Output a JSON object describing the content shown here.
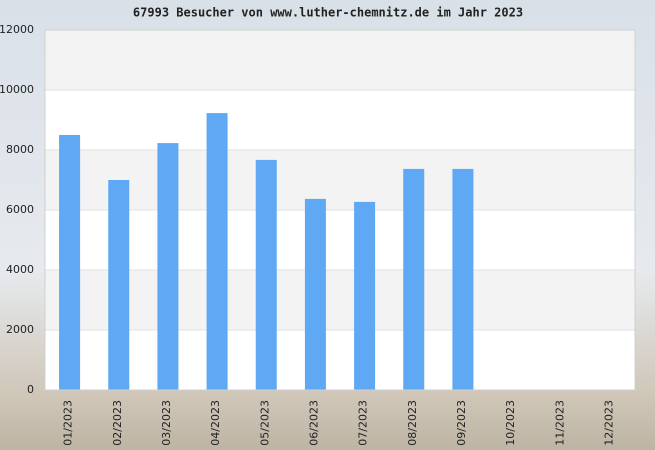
{
  "chart_data": {
    "type": "bar",
    "title": "67993 Besucher von www.luther-chemnitz.de im Jahr 2023",
    "categories": [
      "01/2023",
      "02/2023",
      "03/2023",
      "04/2023",
      "05/2023",
      "06/2023",
      "07/2023",
      "08/2023",
      "09/2023",
      "10/2023",
      "11/2023",
      "12/2023"
    ],
    "values": [
      8500,
      7000,
      8230,
      9230,
      7670,
      6370,
      6270,
      7370,
      7370,
      null,
      null,
      null
    ],
    "color": "#5fa8f4",
    "ylim": [
      0,
      12000
    ],
    "yticks": [
      0,
      2000,
      4000,
      6000,
      8000,
      10000,
      12000
    ],
    "grid": true
  }
}
